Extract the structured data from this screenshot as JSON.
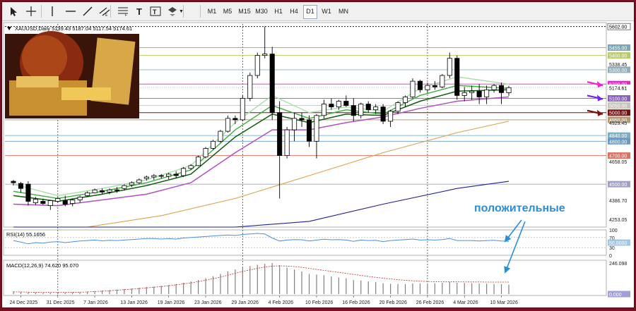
{
  "toolbar": {
    "tools": [
      {
        "name": "cursor-icon"
      },
      {
        "name": "crosshair-icon"
      },
      {
        "name": "vertical-line-icon"
      },
      {
        "name": "horizontal-line-icon"
      },
      {
        "name": "trendline-icon"
      },
      {
        "name": "equidistant-channel-icon"
      },
      {
        "name": "fibonacci-icon"
      },
      {
        "name": "text-icon"
      },
      {
        "name": "text-label-icon"
      },
      {
        "name": "shapes-icon"
      }
    ],
    "timeframes": [
      {
        "label": "M1",
        "active": false
      },
      {
        "label": "M5",
        "active": false
      },
      {
        "label": "M15",
        "active": false
      },
      {
        "label": "M30",
        "active": false
      },
      {
        "label": "H1",
        "active": false
      },
      {
        "label": "H4",
        "active": false
      },
      {
        "label": "D1",
        "active": true
      },
      {
        "label": "W1",
        "active": false
      },
      {
        "label": "MN",
        "active": false
      }
    ]
  },
  "symbol_info": "XAUUSD,Daily  5139.43 5187.04 5117.54 5174.61",
  "price_panel": {
    "min": 4200,
    "max": 5620,
    "ticks": [
      "5338.45",
      "4929.45",
      "4658.05",
      "4386.70",
      "4253.05"
    ],
    "current_price": "5174.61",
    "levels": [
      {
        "price": 5602,
        "label": "5602.00",
        "color": "#222222",
        "style": "dotted",
        "badge_bg": "#ffffff",
        "badge_fg": "#000000"
      },
      {
        "price": 5455,
        "label": "5455.00",
        "color": "#7aa7b5",
        "style": "solid",
        "badge_bg": "#7aa7b5",
        "badge_fg": "#ffffff"
      },
      {
        "price": 5400,
        "label": "5400.00",
        "color": "#b8cc66",
        "style": "solid",
        "badge_bg": "#b8cc66",
        "badge_fg": "#ffffff"
      },
      {
        "price": 5300,
        "label": "5300.00",
        "color": "#8fb0b8",
        "style": "solid",
        "badge_bg": "#8fb0b8",
        "badge_fg": "#ffffff"
      },
      {
        "price": 5200,
        "label": "5200.00",
        "color": "#ee22cc",
        "style": "solid",
        "badge_bg": "#ee22cc",
        "badge_fg": "#ffffff"
      },
      {
        "price": 5100,
        "label": "5100.00",
        "color": "#8a5fc0",
        "style": "solid",
        "badge_bg": "#8a5fc0",
        "badge_fg": "#ffffff"
      },
      {
        "price": 5050,
        "label": "5050.00",
        "color": "#c8c4b8",
        "style": "solid",
        "badge_bg": "#c8c4b8",
        "badge_fg": "#ffffff"
      },
      {
        "price": 5000,
        "label": "5000.00",
        "color": "#7a1010",
        "style": "solid",
        "badge_bg": "#7a1010",
        "badge_fg": "#ffffff"
      },
      {
        "price": 4950,
        "label": "4950.00",
        "color": "#b89a70",
        "style": "solid",
        "badge_bg": "#b89a70",
        "badge_fg": "#ffffff"
      },
      {
        "price": 4840,
        "label": "4840.00",
        "color": "#7ab0c8",
        "style": "solid",
        "badge_bg": "#7ab0c8",
        "badge_fg": "#ffffff"
      },
      {
        "price": 4800,
        "label": "4800.00",
        "color": "#6a9ac8",
        "style": "solid",
        "badge_bg": "#6a9ac8",
        "badge_fg": "#ffffff"
      },
      {
        "price": 4700,
        "label": "4700.00",
        "color": "#e07060",
        "style": "solid",
        "badge_bg": "#e07060",
        "badge_fg": "#ffffff"
      },
      {
        "price": 4500,
        "label": "4500.00",
        "color": "#a0a0c8",
        "style": "solid",
        "badge_bg": "#a0a0c8",
        "badge_fg": "#ffffff"
      }
    ],
    "candles": [
      {
        "o": 4520,
        "h": 4530,
        "l": 4490,
        "c": 4510
      },
      {
        "o": 4505,
        "h": 4515,
        "l": 4440,
        "c": 4470
      },
      {
        "o": 4500,
        "h": 4520,
        "l": 4350,
        "c": 4380
      },
      {
        "o": 4370,
        "h": 4410,
        "l": 4355,
        "c": 4395
      },
      {
        "o": 4380,
        "h": 4400,
        "l": 4355,
        "c": 4365
      },
      {
        "o": 4350,
        "h": 4390,
        "l": 4320,
        "c": 4385
      },
      {
        "o": 4380,
        "h": 4410,
        "l": 4370,
        "c": 4400
      },
      {
        "o": 4385,
        "h": 4420,
        "l": 4345,
        "c": 4360
      },
      {
        "o": 4365,
        "h": 4400,
        "l": 4345,
        "c": 4390
      },
      {
        "o": 4390,
        "h": 4420,
        "l": 4370,
        "c": 4410
      },
      {
        "o": 4420,
        "h": 4450,
        "l": 4410,
        "c": 4440
      },
      {
        "o": 4440,
        "h": 4470,
        "l": 4435,
        "c": 4460
      },
      {
        "o": 4455,
        "h": 4470,
        "l": 4430,
        "c": 4445
      },
      {
        "o": 4445,
        "h": 4470,
        "l": 4430,
        "c": 4460
      },
      {
        "o": 4460,
        "h": 4480,
        "l": 4440,
        "c": 4455
      },
      {
        "o": 4470,
        "h": 4500,
        "l": 4455,
        "c": 4490
      },
      {
        "o": 4495,
        "h": 4520,
        "l": 4480,
        "c": 4510
      },
      {
        "o": 4510,
        "h": 4540,
        "l": 4500,
        "c": 4530
      },
      {
        "o": 4540,
        "h": 4560,
        "l": 4525,
        "c": 4550
      },
      {
        "o": 4550,
        "h": 4570,
        "l": 4530,
        "c": 4560
      },
      {
        "o": 4560,
        "h": 4570,
        "l": 4540,
        "c": 4555
      },
      {
        "o": 4555,
        "h": 4580,
        "l": 4535,
        "c": 4570
      },
      {
        "o": 4570,
        "h": 4590,
        "l": 4540,
        "c": 4560
      },
      {
        "o": 4560,
        "h": 4620,
        "l": 4550,
        "c": 4610
      },
      {
        "o": 4610,
        "h": 4640,
        "l": 4600,
        "c": 4630
      },
      {
        "o": 4630,
        "h": 4700,
        "l": 4625,
        "c": 4690
      },
      {
        "o": 4690,
        "h": 4760,
        "l": 4680,
        "c": 4750
      },
      {
        "o": 4750,
        "h": 4810,
        "l": 4740,
        "c": 4800
      },
      {
        "o": 4800,
        "h": 4880,
        "l": 4790,
        "c": 4870
      },
      {
        "o": 4870,
        "h": 4980,
        "l": 4860,
        "c": 4960
      },
      {
        "o": 4960,
        "h": 4980,
        "l": 4920,
        "c": 4950
      },
      {
        "o": 4950,
        "h": 5120,
        "l": 4940,
        "c": 5100
      },
      {
        "o": 5100,
        "h": 5280,
        "l": 5080,
        "c": 5260
      },
      {
        "o": 5260,
        "h": 5420,
        "l": 5240,
        "c": 5400
      },
      {
        "o": 5400,
        "h": 5602,
        "l": 5380,
        "c": 5410
      },
      {
        "o": 5410,
        "h": 5460,
        "l": 4950,
        "c": 5000
      },
      {
        "o": 5000,
        "h": 5080,
        "l": 4400,
        "c": 4700
      },
      {
        "o": 4700,
        "h": 4900,
        "l": 4680,
        "c": 4880
      },
      {
        "o": 4880,
        "h": 5000,
        "l": 4800,
        "c": 4960
      },
      {
        "o": 4960,
        "h": 5000,
        "l": 4900,
        "c": 4950
      },
      {
        "o": 4950,
        "h": 4980,
        "l": 4760,
        "c": 4800
      },
      {
        "o": 4800,
        "h": 4990,
        "l": 4680,
        "c": 4980
      },
      {
        "o": 4980,
        "h": 5090,
        "l": 4960,
        "c": 5060
      },
      {
        "o": 5060,
        "h": 5100,
        "l": 5020,
        "c": 5040
      },
      {
        "o": 5040,
        "h": 5090,
        "l": 5020,
        "c": 5080
      },
      {
        "o": 5080,
        "h": 5120,
        "l": 5040,
        "c": 5050
      },
      {
        "o": 5050,
        "h": 5100,
        "l": 4940,
        "c": 4980
      },
      {
        "o": 4980,
        "h": 5070,
        "l": 4960,
        "c": 5060
      },
      {
        "o": 5060,
        "h": 5080,
        "l": 5000,
        "c": 5020
      },
      {
        "o": 5020,
        "h": 5060,
        "l": 4990,
        "c": 5040
      },
      {
        "o": 5040,
        "h": 5060,
        "l": 4920,
        "c": 4940
      },
      {
        "o": 4940,
        "h": 5020,
        "l": 4900,
        "c": 5010
      },
      {
        "o": 5010,
        "h": 5080,
        "l": 4990,
        "c": 5070
      },
      {
        "o": 5070,
        "h": 5120,
        "l": 5040,
        "c": 5110
      },
      {
        "o": 5110,
        "h": 5240,
        "l": 5100,
        "c": 5220
      },
      {
        "o": 5220,
        "h": 5230,
        "l": 5140,
        "c": 5160
      },
      {
        "o": 5160,
        "h": 5210,
        "l": 5140,
        "c": 5190
      },
      {
        "o": 5190,
        "h": 5220,
        "l": 5160,
        "c": 5180
      },
      {
        "o": 5180,
        "h": 5270,
        "l": 5170,
        "c": 5260
      },
      {
        "o": 5260,
        "h": 5420,
        "l": 5240,
        "c": 5380
      },
      {
        "o": 5380,
        "h": 5400,
        "l": 5090,
        "c": 5120
      },
      {
        "o": 5120,
        "h": 5180,
        "l": 5080,
        "c": 5140
      },
      {
        "o": 5140,
        "h": 5190,
        "l": 5090,
        "c": 5150
      },
      {
        "o": 5150,
        "h": 5200,
        "l": 5060,
        "c": 5110
      },
      {
        "o": 5110,
        "h": 5190,
        "l": 5060,
        "c": 5160
      },
      {
        "o": 5160,
        "h": 5200,
        "l": 5140,
        "c": 5190
      },
      {
        "o": 5190,
        "h": 5210,
        "l": 5060,
        "c": 5140
      },
      {
        "o": 5139.43,
        "h": 5187.04,
        "l": 5117.54,
        "c": 5174.61
      }
    ],
    "ma_lines": [
      {
        "color": "#aaddaa",
        "width": 1.4,
        "points": [
          [
            0,
            4500
          ],
          [
            6,
            4420
          ],
          [
            12,
            4470
          ],
          [
            18,
            4530
          ],
          [
            24,
            4630
          ],
          [
            30,
            4930
          ],
          [
            35,
            5120
          ],
          [
            40,
            5000
          ],
          [
            45,
            5040
          ],
          [
            50,
            5010
          ],
          [
            55,
            5170
          ],
          [
            60,
            5250
          ],
          [
            67,
            5200
          ]
        ]
      },
      {
        "color": "#33aa33",
        "width": 1.3,
        "points": [
          [
            0,
            4450
          ],
          [
            6,
            4400
          ],
          [
            12,
            4450
          ],
          [
            18,
            4510
          ],
          [
            24,
            4600
          ],
          [
            30,
            4880
          ],
          [
            35,
            5050
          ],
          [
            40,
            4960
          ],
          [
            45,
            5020
          ],
          [
            50,
            4990
          ],
          [
            55,
            5120
          ],
          [
            60,
            5190
          ],
          [
            67,
            5170
          ]
        ]
      },
      {
        "color": "#0e5a0e",
        "width": 1.5,
        "points": [
          [
            0,
            4420
          ],
          [
            6,
            4380
          ],
          [
            12,
            4430
          ],
          [
            18,
            4490
          ],
          [
            24,
            4570
          ],
          [
            30,
            4830
          ],
          [
            35,
            4990
          ],
          [
            40,
            4930
          ],
          [
            45,
            4990
          ],
          [
            50,
            4980
          ],
          [
            55,
            5080
          ],
          [
            60,
            5150
          ],
          [
            67,
            5160
          ]
        ]
      },
      {
        "color": "#b050c0",
        "width": 1.5,
        "points": [
          [
            0,
            4360
          ],
          [
            6,
            4350
          ],
          [
            12,
            4390
          ],
          [
            18,
            4430
          ],
          [
            24,
            4510
          ],
          [
            30,
            4720
          ],
          [
            35,
            4880
          ],
          [
            40,
            4880
          ],
          [
            45,
            4930
          ],
          [
            50,
            4970
          ],
          [
            55,
            5030
          ],
          [
            60,
            5080
          ],
          [
            67,
            5110
          ]
        ]
      },
      {
        "color": "#e0a050",
        "width": 1.1,
        "points": [
          [
            0,
            4160
          ],
          [
            10,
            4200
          ],
          [
            20,
            4280
          ],
          [
            30,
            4400
          ],
          [
            40,
            4560
          ],
          [
            50,
            4720
          ],
          [
            60,
            4860
          ],
          [
            67,
            4940
          ]
        ]
      },
      {
        "color": "#202090",
        "width": 1.1,
        "points": [
          [
            0,
            3950
          ],
          [
            15,
            4020
          ],
          [
            30,
            4120
          ],
          [
            40,
            4240
          ],
          [
            50,
            4360
          ],
          [
            60,
            4470
          ],
          [
            67,
            4520
          ]
        ]
      }
    ],
    "badge_labels": [
      {
        "name": "price-label-5338",
        "price": 5338.45
      },
      {
        "name": "price-label-4929",
        "price": 4929.45
      },
      {
        "name": "price-label-4658",
        "price": 4658.05
      },
      {
        "name": "price-label-4386",
        "price": 4386.7
      },
      {
        "name": "price-label-4253",
        "price": 4253.05
      }
    ]
  },
  "rsi_panel": {
    "label": "RSI(14) 55.1656",
    "ticks": [
      "100",
      "70",
      "50.0000",
      "30",
      "0"
    ],
    "values": [
      58,
      52,
      45,
      50,
      48,
      52,
      54,
      50,
      53,
      56,
      58,
      60,
      57,
      59,
      58,
      60,
      62,
      64,
      66,
      66,
      64,
      66,
      64,
      68,
      70,
      72,
      74,
      76,
      78,
      80,
      78,
      82,
      84,
      86,
      84,
      68,
      56,
      60,
      62,
      61,
      56,
      60,
      63,
      61,
      62,
      60,
      55,
      60,
      58,
      59,
      54,
      58,
      60,
      62,
      64,
      60,
      61,
      60,
      62,
      66,
      58,
      58,
      58,
      56,
      58,
      59,
      56,
      55
    ]
  },
  "macd_panel": {
    "label": "MACD(12,26,9) 74.620 95.070",
    "ticks": [
      "246.098",
      "0.000"
    ],
    "hist": [
      20,
      18,
      14,
      12,
      10,
      10,
      12,
      12,
      14,
      16,
      20,
      24,
      28,
      32,
      36,
      40,
      44,
      50,
      56,
      60,
      66,
      72,
      80,
      90,
      100,
      112,
      126,
      142,
      160,
      180,
      196,
      210,
      222,
      232,
      240,
      246,
      230,
      210,
      195,
      180,
      160,
      155,
      150,
      140,
      132,
      125,
      112,
      108,
      100,
      96,
      86,
      82,
      80,
      80,
      84,
      84,
      86,
      86,
      90,
      96,
      90,
      88,
      86,
      84,
      82,
      80,
      78,
      75
    ],
    "signal": [
      18,
      17,
      15,
      14,
      13,
      13,
      13,
      13,
      14,
      15,
      17,
      20,
      23,
      27,
      31,
      35,
      39,
      44,
      49,
      54,
      60,
      66,
      73,
      81,
      89,
      99,
      110,
      122,
      135,
      150,
      165,
      180,
      192,
      204,
      214,
      222,
      224,
      222,
      218,
      212,
      204,
      196,
      188,
      180,
      172,
      164,
      156,
      148,
      140,
      133,
      126,
      120,
      114,
      109,
      105,
      102,
      100,
      98,
      97,
      97,
      97,
      96,
      96,
      96,
      95,
      95,
      95,
      95
    ]
  },
  "date_axis": [
    {
      "label": "24 Dec 2025",
      "index": 1
    },
    {
      "label": "31 Dec 2025",
      "index": 6
    },
    {
      "label": "7 Jan 2026",
      "index": 11
    },
    {
      "label": "13 Jan 2026",
      "index": 16
    },
    {
      "label": "19 Jan 2026",
      "index": 21
    },
    {
      "label": "23 Jan 2026",
      "index": 26
    },
    {
      "label": "29 Jan 2026",
      "index": 31
    },
    {
      "label": "4 Feb 2026",
      "index": 36
    },
    {
      "label": "10 Feb 2026",
      "index": 41
    },
    {
      "label": "16 Feb 2026",
      "index": 46
    },
    {
      "label": "20 Feb 2026",
      "index": 51
    },
    {
      "label": "26 Feb 2026",
      "index": 56
    },
    {
      "label": "4 Mar 2026",
      "index": 61
    },
    {
      "label": "10 Mar 2026",
      "index": 66
    }
  ],
  "annotation": {
    "text": "положительные",
    "color": "#2a8fd6"
  },
  "colors": {
    "bull_body": "#ffffff",
    "bear_body": "#000000",
    "frame": "#7a0f22"
  }
}
